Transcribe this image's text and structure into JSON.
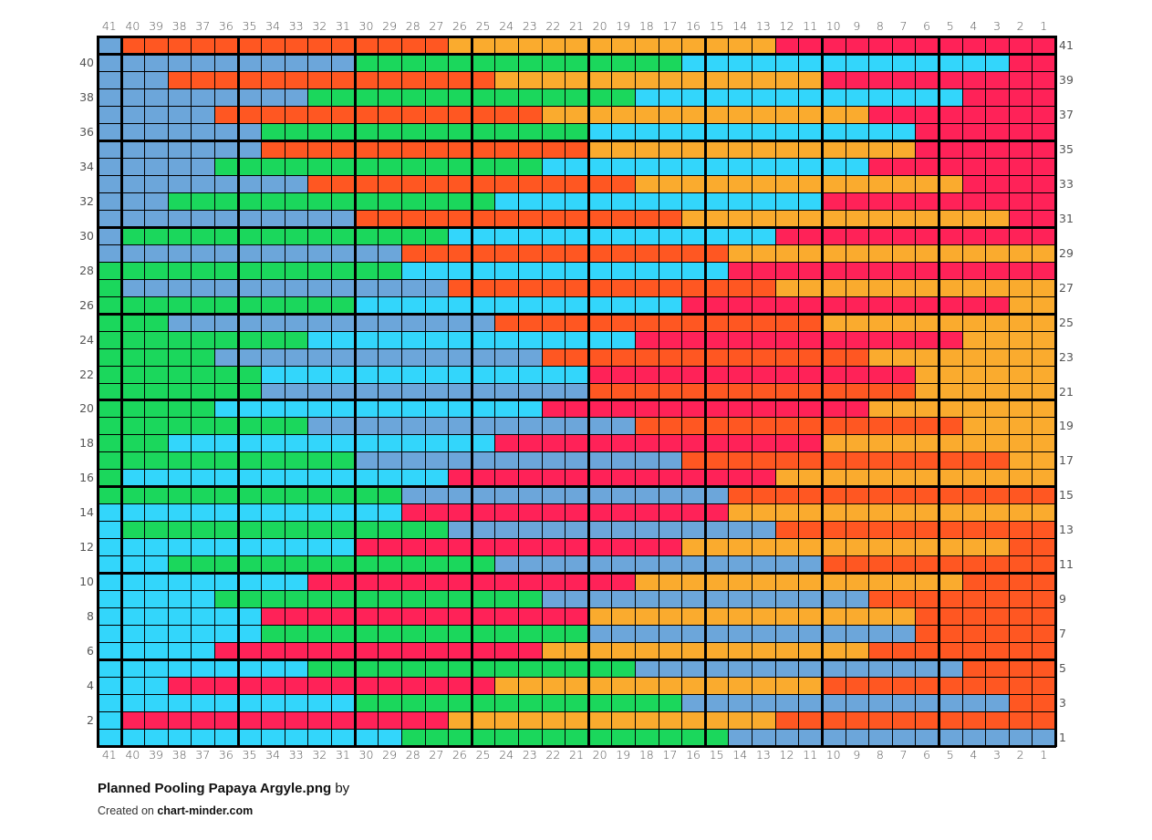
{
  "chart_data": {
    "type": "heatmap",
    "title": "Planned Pooling Papaya Argyle.png",
    "title_suffix": "by",
    "columns": 41,
    "rows_count": 41,
    "col_labels": [
      "41",
      "40",
      "39",
      "38",
      "37",
      "36",
      "35",
      "34",
      "33",
      "32",
      "31",
      "30",
      "29",
      "28",
      "27",
      "26",
      "25",
      "24",
      "23",
      "22",
      "21",
      "20",
      "19",
      "18",
      "17",
      "16",
      "15",
      "14",
      "13",
      "12",
      "11",
      "10",
      "9",
      "8",
      "7",
      "6",
      "5",
      "4",
      "3",
      "2",
      "1"
    ],
    "palette": {
      "B": "#6ca6da",
      "R": "#ff5722",
      "O": "#faab2e",
      "G": "#1bd75c",
      "C": "#33d6fb",
      "P": "#ff2258"
    },
    "row_encoding": "color runs listed from column 41 to column 1",
    "rows": [
      {
        "label": "41",
        "runs": "B1 R14 O14 P12"
      },
      {
        "label": "40",
        "runs": "B11 G14 C14 P2"
      },
      {
        "label": "39",
        "runs": "B3 R14 O14 P10"
      },
      {
        "label": "38",
        "runs": "B9 G14 C14 P4"
      },
      {
        "label": "37",
        "runs": "B5 R14 O14 P8"
      },
      {
        "label": "36",
        "runs": "B7 G14 C14 P6"
      },
      {
        "label": "35",
        "runs": "B7 R14 O14 P6"
      },
      {
        "label": "34",
        "runs": "B5 G14 C14 P8"
      },
      {
        "label": "33",
        "runs": "B9 R14 O14 P4"
      },
      {
        "label": "32",
        "runs": "B3 G14 C14 P10"
      },
      {
        "label": "31",
        "runs": "B11 R14 O14 P2"
      },
      {
        "label": "30",
        "runs": "B1 G14 C14 P12"
      },
      {
        "label": "29",
        "runs": "B13 R14 O14"
      },
      {
        "label": "28",
        "runs": "G13 C14 P14"
      },
      {
        "label": "27",
        "runs": "G1 B14 R14 O12"
      },
      {
        "label": "26",
        "runs": "G11 C14 P14 O2"
      },
      {
        "label": "25",
        "runs": "G3 B14 R14 O10"
      },
      {
        "label": "24",
        "runs": "G9 C14 P14 O4"
      },
      {
        "label": "23",
        "runs": "G5 B14 R14 O8"
      },
      {
        "label": "22",
        "runs": "G7 C14 P14 O6"
      },
      {
        "label": "21",
        "runs": "G7 B14 R14 O6"
      },
      {
        "label": "20",
        "runs": "G5 C14 P14 O8"
      },
      {
        "label": "19",
        "runs": "G9 B14 R14 O4"
      },
      {
        "label": "18",
        "runs": "G3 C14 P14 O10"
      },
      {
        "label": "17",
        "runs": "G11 B14 R14 O2"
      },
      {
        "label": "16",
        "runs": "G1 C14 P14 O12"
      },
      {
        "label": "15",
        "runs": "G13 B14 R14"
      },
      {
        "label": "14",
        "runs": "C13 P14 O14"
      },
      {
        "label": "13",
        "runs": "C1 G14 B14 R12"
      },
      {
        "label": "12",
        "runs": "C11 P14 O14 R2"
      },
      {
        "label": "11",
        "runs": "C3 G14 B14 R10"
      },
      {
        "label": "10",
        "runs": "C9 P14 O14 R4"
      },
      {
        "label": "9",
        "runs": "C5 G14 B14 R8"
      },
      {
        "label": "8",
        "runs": "C7 P14 O14 R6"
      },
      {
        "label": "7",
        "runs": "C7 G14 B14 R6"
      },
      {
        "label": "6",
        "runs": "C5 P14 O14 R8"
      },
      {
        "label": "5",
        "runs": "C9 G14 B14 R4"
      },
      {
        "label": "4",
        "runs": "C3 P14 O14 R10"
      },
      {
        "label": "3",
        "runs": "C11 G14 B14 R2"
      },
      {
        "label": "2",
        "runs": "C1 P14 O14 R12"
      },
      {
        "label": "1",
        "runs": "C13 G14 B14"
      }
    ]
  },
  "footer": {
    "created_prefix": "Created on",
    "site": "chart-minder.com"
  }
}
